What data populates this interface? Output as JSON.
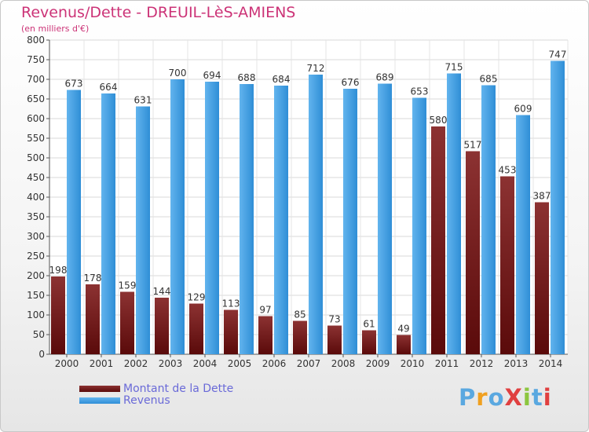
{
  "title": "Revenus/Dette - DREUIL-LèS-AMIENS",
  "subtitle": "(en milliers d'€)",
  "colors": {
    "debt_top": "#8c3232",
    "debt_bottom": "#5a0a0a",
    "revenue_top": "#62b4ee",
    "revenue_bottom": "#2f8ed6",
    "title": "#cc3377",
    "legend_text": "#6a6ad8"
  },
  "logo": {
    "text": "ProXiti",
    "letter_colors": [
      "#5aa8e0",
      "#f0a020",
      "#5aa8e0",
      "#e04040",
      "#8cc63f",
      "#5aa8e0",
      "#e04040"
    ]
  },
  "chart_data": {
    "type": "bar",
    "categories": [
      "2000",
      "2001",
      "2002",
      "2003",
      "2004",
      "2005",
      "2006",
      "2007",
      "2008",
      "2009",
      "2010",
      "2011",
      "2012",
      "2013",
      "2014"
    ],
    "series": [
      {
        "name": "Montant de la Dette",
        "values": [
          198,
          178,
          159,
          144,
          129,
          113,
          97,
          85,
          73,
          61,
          49,
          580,
          517,
          453,
          387
        ]
      },
      {
        "name": "Revenus",
        "values": [
          673,
          664,
          631,
          700,
          694,
          688,
          684,
          712,
          676,
          689,
          653,
          715,
          685,
          609,
          747
        ]
      }
    ],
    "ylim": [
      0,
      800
    ],
    "yticks": [
      0,
      50,
      100,
      150,
      200,
      250,
      300,
      350,
      400,
      450,
      500,
      550,
      600,
      650,
      700,
      750,
      800
    ],
    "grid": true,
    "legend_position": "bottom-left"
  }
}
